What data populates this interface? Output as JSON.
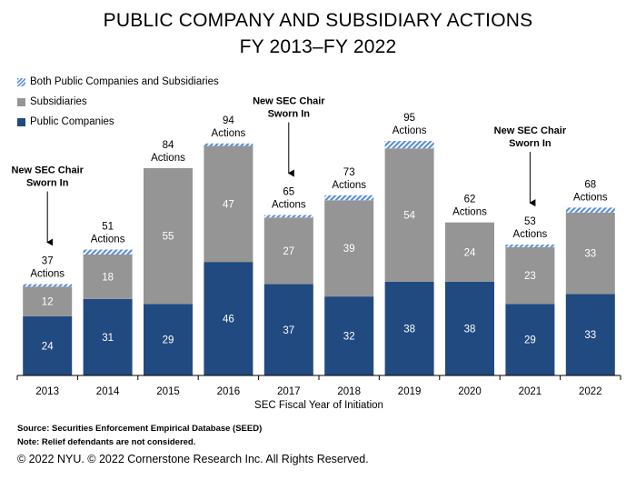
{
  "chart_data": {
    "type": "bar",
    "stacked": true,
    "title": "PUBLIC COMPANY AND SUBSIDIARY ACTIONS",
    "subtitle": "FY 2013–FY 2022",
    "xlabel": "SEC Fiscal Year of Initiation",
    "ylabel": "",
    "ylim": [
      0,
      95
    ],
    "grid": false,
    "legend_placement": "top-left",
    "categories": [
      "2013",
      "2014",
      "2015",
      "2016",
      "2017",
      "2018",
      "2019",
      "2020",
      "2021",
      "2022"
    ],
    "series": [
      {
        "name": "Public Companies",
        "color": "#214a80",
        "values": [
          24,
          31,
          29,
          46,
          37,
          32,
          38,
          38,
          29,
          33
        ]
      },
      {
        "name": "Subsidiaries",
        "color": "#959595",
        "values": [
          12,
          18,
          55,
          47,
          27,
          39,
          54,
          24,
          23,
          33
        ]
      },
      {
        "name": "Both Public Companies and Subsidiaries",
        "color": "#5b8fd6",
        "pattern": "diagonal-stripe",
        "values": [
          1,
          2,
          0,
          1,
          1,
          2,
          3,
          0,
          1,
          2
        ]
      }
    ],
    "totals": [
      37,
      51,
      84,
      94,
      65,
      73,
      95,
      62,
      53,
      68
    ],
    "total_label_suffix": "Actions",
    "annotations": [
      {
        "category": "2013",
        "text_line1": "New SEC Chair",
        "text_line2": "Sworn In"
      },
      {
        "category": "2017",
        "text_line1": "New SEC Chair",
        "text_line2": "Sworn In"
      },
      {
        "category": "2021",
        "text_line1": "New SEC Chair",
        "text_line2": "Sworn In"
      }
    ]
  },
  "legend": [
    {
      "label": "Both Public Companies and Subsidiaries",
      "color": "#5b8fd6",
      "pattern": "diagonal-stripe"
    },
    {
      "label": "Subsidiaries",
      "color": "#959595"
    },
    {
      "label": "Public Companies",
      "color": "#214a80"
    }
  ],
  "footer": {
    "source": "Source: Securities Enforcement Empirical Database (SEED)",
    "note": "Note: Relief defendants are not considered.",
    "copyright": "© 2022 NYU. © 2022 Cornerstone Research Inc. All Rights Reserved."
  }
}
